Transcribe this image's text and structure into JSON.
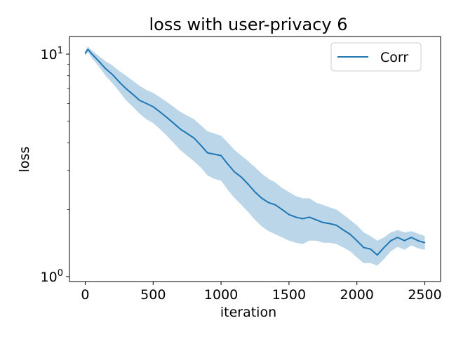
{
  "chart_data": {
    "type": "line",
    "title": "loss with user-privacy  6",
    "xlabel": "iteration",
    "ylabel": "loss",
    "xlim": [
      -116,
      2616
    ],
    "ylim": [
      0.95,
      12.0
    ],
    "yscale": "log",
    "x_ticks": [
      0,
      500,
      1000,
      1500,
      2000,
      2500
    ],
    "y_ticks": [
      {
        "value": 1,
        "base": "10",
        "exp": "0"
      },
      {
        "value": 10,
        "base": "10",
        "exp": "1"
      }
    ],
    "legend": {
      "position": "top-right"
    },
    "colors": {
      "line": "#1f77b4",
      "band": "#1f77b4"
    },
    "grid": false,
    "series": [
      {
        "name": "Corr",
        "x": [
          0,
          20,
          50,
          100,
          150,
          200,
          250,
          300,
          350,
          400,
          450,
          500,
          550,
          600,
          650,
          700,
          750,
          800,
          850,
          900,
          950,
          1000,
          1050,
          1100,
          1150,
          1200,
          1250,
          1300,
          1350,
          1400,
          1450,
          1500,
          1550,
          1600,
          1650,
          1700,
          1750,
          1800,
          1850,
          1900,
          1950,
          2000,
          2050,
          2100,
          2150,
          2200,
          2250,
          2300,
          2350,
          2400,
          2450,
          2500
        ],
        "y": [
          10.1,
          10.5,
          10.0,
          9.3,
          8.6,
          8.1,
          7.5,
          7.0,
          6.6,
          6.2,
          6.0,
          5.8,
          5.5,
          5.2,
          4.9,
          4.6,
          4.4,
          4.2,
          3.9,
          3.6,
          3.55,
          3.5,
          3.2,
          2.95,
          2.8,
          2.6,
          2.4,
          2.25,
          2.15,
          2.1,
          2.0,
          1.9,
          1.85,
          1.82,
          1.85,
          1.8,
          1.75,
          1.73,
          1.7,
          1.62,
          1.55,
          1.45,
          1.35,
          1.33,
          1.25,
          1.35,
          1.45,
          1.5,
          1.45,
          1.5,
          1.45,
          1.42
        ],
        "upper": [
          10.4,
          10.8,
          10.4,
          9.8,
          9.3,
          8.9,
          8.4,
          8.0,
          7.6,
          7.2,
          6.9,
          6.7,
          6.4,
          6.1,
          5.8,
          5.5,
          5.3,
          5.1,
          4.8,
          4.5,
          4.4,
          4.3,
          4.0,
          3.7,
          3.5,
          3.3,
          3.1,
          2.9,
          2.75,
          2.65,
          2.5,
          2.4,
          2.3,
          2.25,
          2.25,
          2.15,
          2.1,
          2.05,
          2.0,
          1.9,
          1.8,
          1.7,
          1.58,
          1.52,
          1.45,
          1.5,
          1.58,
          1.62,
          1.58,
          1.6,
          1.56,
          1.52
        ],
        "lower": [
          9.8,
          10.2,
          9.6,
          8.8,
          8.0,
          7.4,
          6.8,
          6.2,
          5.8,
          5.4,
          5.1,
          4.9,
          4.6,
          4.3,
          4.0,
          3.7,
          3.5,
          3.3,
          3.1,
          2.85,
          2.75,
          2.7,
          2.45,
          2.25,
          2.1,
          1.95,
          1.8,
          1.68,
          1.6,
          1.55,
          1.5,
          1.45,
          1.42,
          1.4,
          1.45,
          1.45,
          1.42,
          1.42,
          1.4,
          1.35,
          1.3,
          1.22,
          1.15,
          1.15,
          1.12,
          1.2,
          1.3,
          1.36,
          1.32,
          1.38,
          1.34,
          1.32
        ]
      }
    ]
  }
}
